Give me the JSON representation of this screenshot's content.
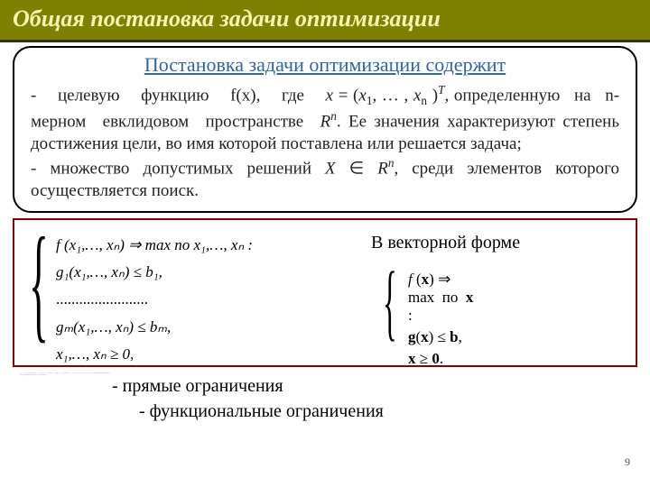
{
  "title": "Общая постановка задачи оптимизации",
  "box": {
    "subtitle": "Постановка задачи оптимизации содержит",
    "para1_prefix": "- целевую функцию f(x), где ",
    "para1_math_x": "x",
    "para1_math_eq": " = (",
    "para1_x1": "x",
    "para1_x1_sub": "1",
    "para1_dots": ", … , ",
    "para1_xn": "x",
    "para1_xn_sub": "n",
    "para1_close": " )",
    "para1_T": "T",
    "para1_comma": ",",
    "para2": " определенную на n-мерном евклидовом пространстве ",
    "para2_Rn": "R",
    "para2_n": "n",
    "para2_rest": ". Ее значения характеризуют степень достижения цели, во имя которой  поставлена или решается задача;",
    "para3_prefix": "- множество допустимых решений ",
    "para3_X": "X",
    "para3_in": " ∈ ",
    "para3_Rn": "R",
    "para3_n": "n",
    "para3_rest": ", среди элементов которого осуществляется поиск."
  },
  "formula_left": {
    "l1": "f (x₁,…, xₙ) ⇒ max  по  x₁,…, xₙ :",
    "l2": "g₁(x₁,…, xₙ) ≤ b₁,",
    "l3": "........................",
    "l4": "gₘ(x₁,…, xₙ) ≤ bₘ,",
    "l5": "x₁,…, xₙ ≥ 0,"
  },
  "vector_label": "В векторной форме",
  "formula_right": {
    "r1": "f (x) ⇒ max  по  x :",
    "r2": "g(x) ≤ b,",
    "r3": "x ≥ 0."
  },
  "notes": {
    "n1": "- прямые ограничения",
    "n2": "- функциональные ограничения"
  },
  "page_number": "9",
  "colors": {
    "title_bg": "#808000",
    "title_border": "#333300",
    "title_text": "#f5f5b0",
    "subtitle": "#336699",
    "box_border": "#000000",
    "formula_border": "#800000",
    "body_text": "#222222"
  }
}
